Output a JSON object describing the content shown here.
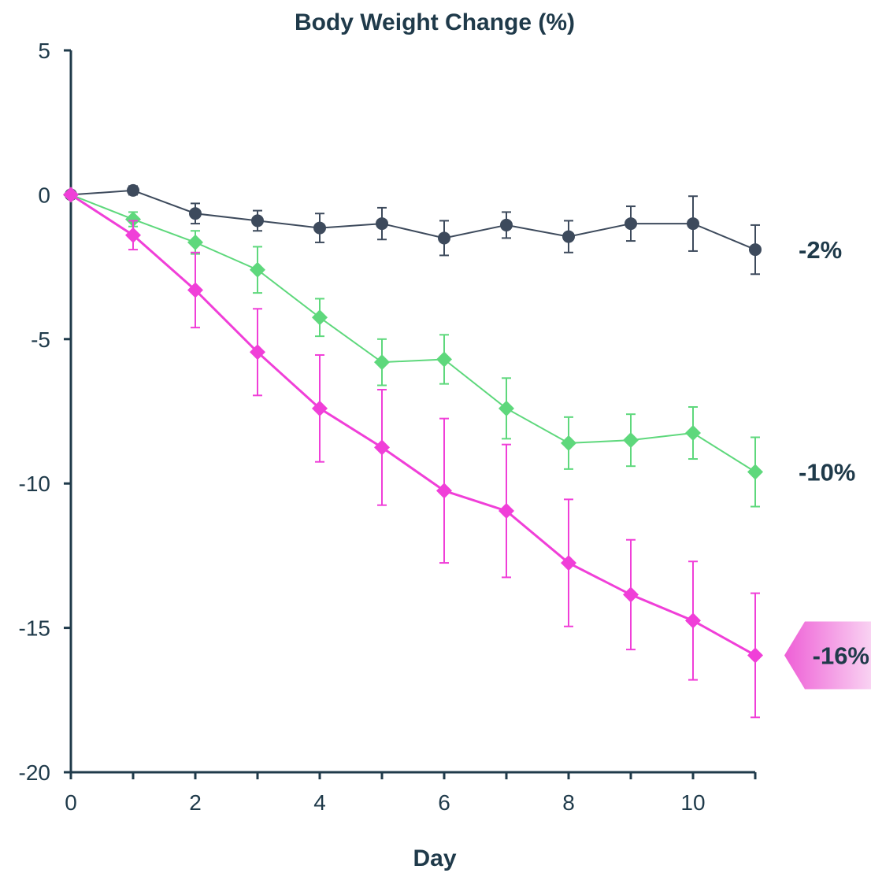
{
  "colors": {
    "axis": "#1f3a4a",
    "text": "#1f3a4a",
    "tag_fill": "#f06fd8"
  },
  "chart_data": {
    "type": "line",
    "title": "Body Weight Change (%)",
    "xlabel": "Day",
    "ylabel": "",
    "xlim": [
      0,
      11
    ],
    "ylim": [
      -20,
      5
    ],
    "xticks": [
      0,
      2,
      4,
      6,
      8,
      10
    ],
    "xticks_minor": [
      0,
      1,
      2,
      3,
      4,
      5,
      6,
      7,
      8,
      9,
      10,
      11
    ],
    "yticks": [
      5,
      0,
      -5,
      -10,
      -15,
      -20
    ],
    "grid": false,
    "legend": "none",
    "series": [
      {
        "marker": "circle",
        "color": "#3d4a5c",
        "x": [
          0,
          1,
          2,
          3,
          4,
          5,
          6,
          7,
          8,
          9,
          10,
          11
        ],
        "y": [
          0,
          0.15,
          -0.65,
          -0.9,
          -1.15,
          -1.0,
          -1.5,
          -1.05,
          -1.45,
          -1.0,
          -1.0,
          -1.9
        ],
        "err": [
          0,
          0.15,
          0.35,
          0.35,
          0.5,
          0.55,
          0.6,
          0.45,
          0.55,
          0.6,
          0.95,
          0.85
        ],
        "end_label": "-2%"
      },
      {
        "marker": "diamond",
        "color": "#5ed87c",
        "x": [
          0,
          1,
          2,
          3,
          4,
          5,
          6,
          7,
          8,
          9,
          10,
          11
        ],
        "y": [
          0,
          -0.85,
          -1.65,
          -2.6,
          -4.25,
          -5.8,
          -5.7,
          -7.4,
          -8.6,
          -8.5,
          -8.25,
          -9.6
        ],
        "err": [
          0,
          0.25,
          0.4,
          0.8,
          0.65,
          0.8,
          0.85,
          1.05,
          0.9,
          0.9,
          0.9,
          1.2
        ],
        "end_label": "-10%"
      },
      {
        "marker": "diamond",
        "color": "#f03fd8",
        "x": [
          0,
          1,
          2,
          3,
          4,
          5,
          6,
          7,
          8,
          9,
          10,
          11
        ],
        "y": [
          0,
          -1.4,
          -3.3,
          -5.45,
          -7.4,
          -8.75,
          -10.25,
          -10.95,
          -12.75,
          -13.85,
          -14.75,
          -15.95
        ],
        "err": [
          0,
          0.5,
          1.3,
          1.5,
          1.85,
          2.0,
          2.5,
          2.3,
          2.2,
          1.9,
          2.05,
          2.15
        ],
        "end_label": "-16%",
        "end_label_tag": true
      }
    ]
  }
}
